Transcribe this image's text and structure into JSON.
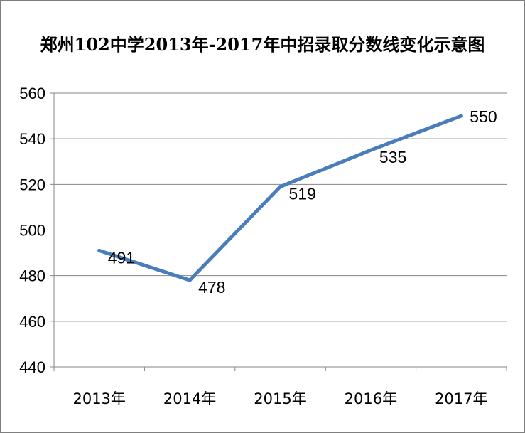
{
  "chart_data": {
    "type": "line",
    "title": "郑州102中学2013年-2017年中招录取分数线变化示意图",
    "categories": [
      "2013年",
      "2014年",
      "2015年",
      "2016年",
      "2017年"
    ],
    "series": [
      {
        "values": [
          491,
          478,
          519,
          535,
          550
        ],
        "color": "#4a7ebb"
      }
    ],
    "data_labels": [
      "491",
      "478",
      "519",
      "535",
      "550"
    ],
    "y_ticks": [
      "440",
      "460",
      "480",
      "500",
      "520",
      "540",
      "560"
    ],
    "ylim": [
      440,
      560
    ],
    "grid": true,
    "legend": "none"
  }
}
